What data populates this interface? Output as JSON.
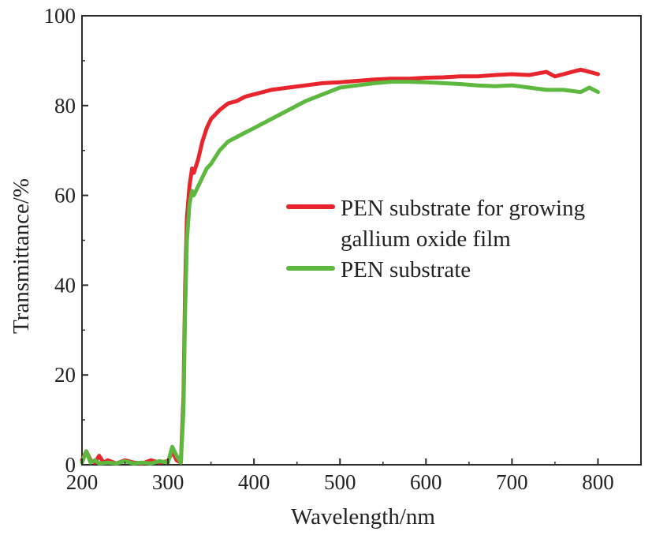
{
  "chart_data": {
    "type": "line",
    "title": "",
    "xlabel": "Wavelength/nm",
    "ylabel": "Transmittance/%",
    "xlim": [
      200,
      850
    ],
    "ylim": [
      0,
      100
    ],
    "xticks": [
      200,
      300,
      400,
      500,
      600,
      700,
      800
    ],
    "yticks": [
      0,
      20,
      40,
      60,
      80,
      100
    ],
    "xtick_labels": [
      "200",
      "300",
      "400",
      "500",
      "600",
      "700",
      "800"
    ],
    "ytick_labels": [
      "0",
      "20",
      "40",
      "60",
      "80",
      "100"
    ],
    "grid": false,
    "legend_position": "center-right",
    "series": [
      {
        "name": "PEN substrate for growing gallium oxide film",
        "legend_lines": [
          "PEN substrate for growing",
          "gallium oxide film"
        ],
        "color": "#e8242c",
        "x": [
          200,
          205,
          210,
          215,
          220,
          225,
          230,
          240,
          250,
          260,
          270,
          280,
          290,
          300,
          305,
          310,
          315,
          318,
          320,
          322,
          325,
          328,
          330,
          335,
          340,
          345,
          350,
          360,
          370,
          380,
          390,
          400,
          420,
          440,
          460,
          480,
          500,
          520,
          540,
          560,
          580,
          600,
          620,
          640,
          660,
          680,
          700,
          720,
          740,
          750,
          760,
          770,
          780,
          790,
          800
        ],
        "y": [
          1,
          3,
          1,
          0.5,
          2,
          0.5,
          1,
          0.3,
          1,
          0.5,
          0.3,
          1,
          0.5,
          0.8,
          3,
          1,
          0.5,
          15,
          40,
          55,
          62,
          66,
          65,
          68,
          72,
          75,
          77,
          79,
          80.5,
          81,
          82,
          82.5,
          83.5,
          84,
          84.5,
          85,
          85.2,
          85.5,
          85.8,
          86,
          86,
          86.2,
          86.3,
          86.5,
          86.5,
          86.8,
          87,
          86.8,
          87.5,
          86.5,
          87,
          87.5,
          88,
          87.5,
          87
        ]
      },
      {
        "name": "PEN substrate",
        "legend_lines": [
          "PEN substrate"
        ],
        "color": "#5cb83e",
        "x": [
          200,
          205,
          210,
          215,
          220,
          230,
          240,
          250,
          260,
          270,
          280,
          290,
          300,
          305,
          310,
          315,
          318,
          320,
          322,
          325,
          328,
          330,
          335,
          340,
          345,
          350,
          360,
          370,
          380,
          390,
          400,
          420,
          440,
          460,
          480,
          500,
          520,
          540,
          560,
          580,
          600,
          620,
          640,
          660,
          680,
          700,
          720,
          740,
          760,
          780,
          790,
          800
        ],
        "y": [
          0.5,
          3,
          0.5,
          1,
          0.3,
          0.5,
          0.3,
          0.8,
          0.3,
          0.5,
          0.3,
          0.8,
          0.5,
          4,
          2,
          0.5,
          12,
          35,
          50,
          58,
          61,
          60,
          62,
          64,
          66,
          67,
          70,
          72,
          73,
          74,
          75,
          77,
          79,
          81,
          82.5,
          84,
          84.5,
          85,
          85.3,
          85.3,
          85.2,
          85,
          84.8,
          84.5,
          84.3,
          84.5,
          84,
          83.5,
          83.5,
          83,
          84,
          83
        ]
      }
    ]
  }
}
